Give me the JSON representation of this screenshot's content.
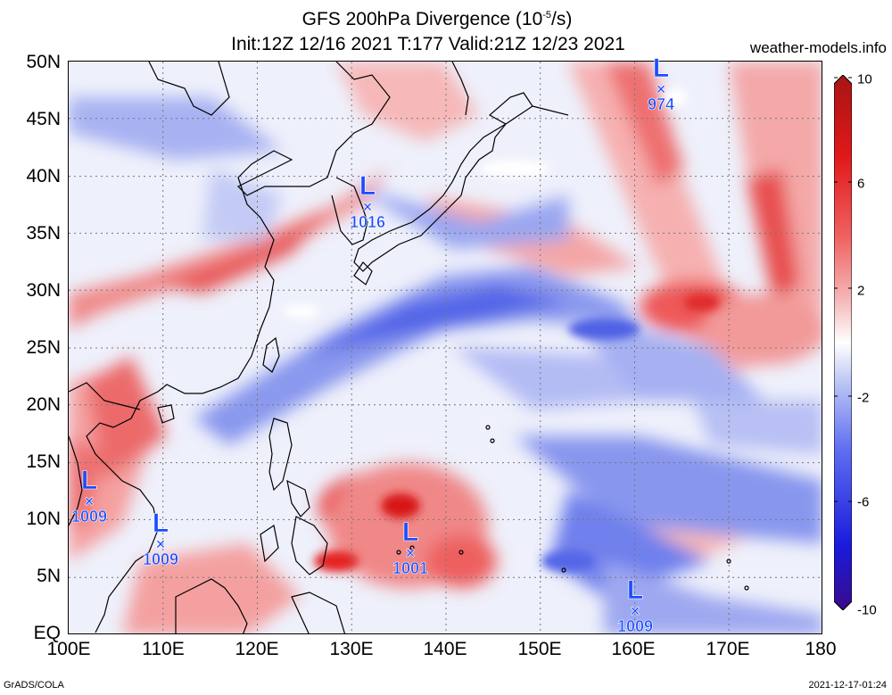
{
  "header": {
    "title_prefix": "GFS 200hPa Divergence (10",
    "title_exp": "-5",
    "title_suffix": "/s)",
    "subtitle": "Init:12Z 12/16 2021 T:177 Valid:21Z 12/23 2021",
    "site": "weather-models.info"
  },
  "lat_labels": [
    "50N",
    "45N",
    "40N",
    "35N",
    "30N",
    "25N",
    "20N",
    "15N",
    "10N",
    "5N",
    "EQ"
  ],
  "lon_labels": [
    "100E",
    "110E",
    "120E",
    "130E",
    "140E",
    "150E",
    "160E",
    "170E",
    "180"
  ],
  "colorbar": {
    "labels": [
      "10",
      "6",
      "2",
      "-2",
      "-6",
      "-10"
    ],
    "colors": [
      "#3a0a8a",
      "#1a1adc",
      "#5f6ef0",
      "#b8c2f4",
      "#ffffff",
      "#f4b8b8",
      "#f06060",
      "#e01818",
      "#a51515"
    ]
  },
  "lows": [
    {
      "marker": "L",
      "cross": "×",
      "pressure": "974"
    },
    {
      "marker": "L",
      "cross": "×",
      "pressure": "1016"
    },
    {
      "marker": "L",
      "cross": "×",
      "pressure": "1009"
    },
    {
      "marker": "L",
      "cross": "×",
      "pressure": "1009"
    },
    {
      "marker": "L",
      "cross": "×",
      "pressure": "1001"
    },
    {
      "marker": "L",
      "cross": "×",
      "pressure": "1009"
    }
  ],
  "footer": {
    "left": "GrADS/COLA",
    "right": "2021-12-17-01:24"
  }
}
